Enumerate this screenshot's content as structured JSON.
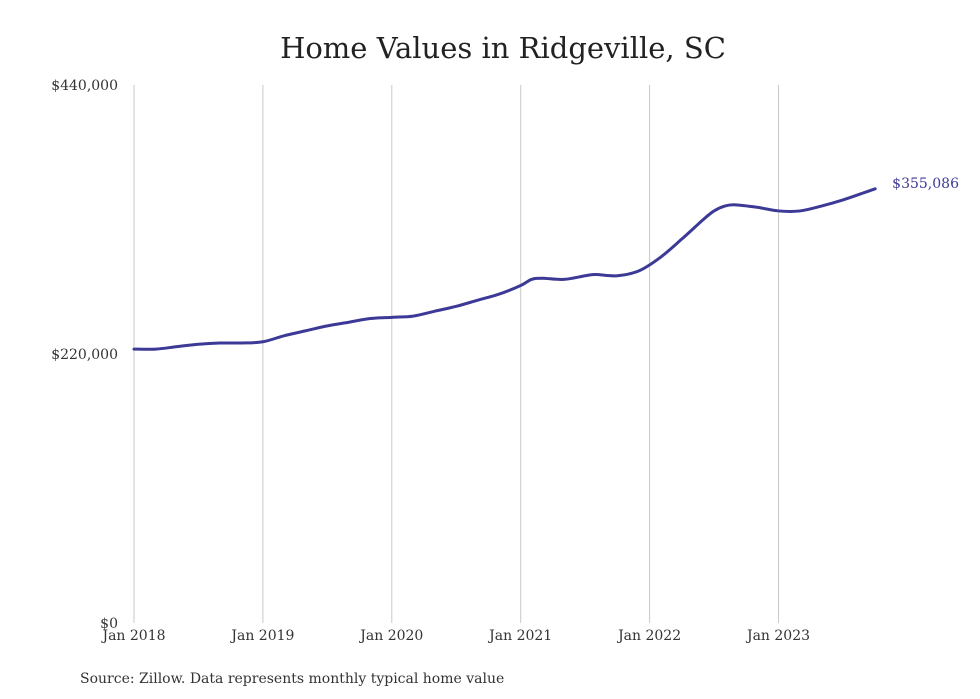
{
  "chart_data": {
    "type": "line",
    "title": "Home Values in Ridgeville, SC",
    "xlabel": "",
    "ylabel": "",
    "ylim": [
      0,
      440000
    ],
    "y_ticks": [
      {
        "value": 0,
        "label": "$0"
      },
      {
        "value": 220000,
        "label": "$220,000"
      },
      {
        "value": 440000,
        "label": "$440,000"
      }
    ],
    "x_ticks": [
      {
        "x": "2018-01",
        "label": "Jan 2018"
      },
      {
        "x": "2019-01",
        "label": "Jan 2019"
      },
      {
        "x": "2020-01",
        "label": "Jan 2020"
      },
      {
        "x": "2021-01",
        "label": "Jan 2021"
      },
      {
        "x": "2022-01",
        "label": "Jan 2022"
      },
      {
        "x": "2023-01",
        "label": "Jan 2023"
      }
    ],
    "grid": "vertical",
    "series": [
      {
        "color": "#3c3a96",
        "end_label": "$355,086",
        "points": [
          [
            "2018-01",
            224000
          ],
          [
            "2018-03",
            224000
          ],
          [
            "2018-05",
            226000
          ],
          [
            "2018-07",
            228000
          ],
          [
            "2018-09",
            229000
          ],
          [
            "2018-11",
            229000
          ],
          [
            "2019-01",
            230000
          ],
          [
            "2019-03",
            235000
          ],
          [
            "2019-05",
            239000
          ],
          [
            "2019-07",
            243000
          ],
          [
            "2019-09",
            246000
          ],
          [
            "2019-11",
            249000
          ],
          [
            "2020-01",
            250000
          ],
          [
            "2020-03",
            251000
          ],
          [
            "2020-05",
            255000
          ],
          [
            "2020-07",
            259000
          ],
          [
            "2020-09",
            264000
          ],
          [
            "2020-11",
            269000
          ],
          [
            "2021-01",
            276000
          ],
          [
            "2021-02",
            281000
          ],
          [
            "2021-03",
            282000
          ],
          [
            "2021-05",
            281000
          ],
          [
            "2021-07",
            284000
          ],
          [
            "2021-08",
            285000
          ],
          [
            "2021-10",
            284000
          ],
          [
            "2021-12",
            288000
          ],
          [
            "2022-02",
            299000
          ],
          [
            "2022-04",
            314000
          ],
          [
            "2022-06",
            330000
          ],
          [
            "2022-07",
            337000
          ],
          [
            "2022-08",
            341000
          ],
          [
            "2022-09",
            342000
          ],
          [
            "2022-11",
            340000
          ],
          [
            "2023-01",
            337000
          ],
          [
            "2023-03",
            337000
          ],
          [
            "2023-05",
            341000
          ],
          [
            "2023-07",
            346000
          ],
          [
            "2023-09",
            352000
          ],
          [
            "2023-10",
            355086
          ]
        ]
      }
    ]
  },
  "source_note": "Source: Zillow. Data represents monthly typical home value"
}
